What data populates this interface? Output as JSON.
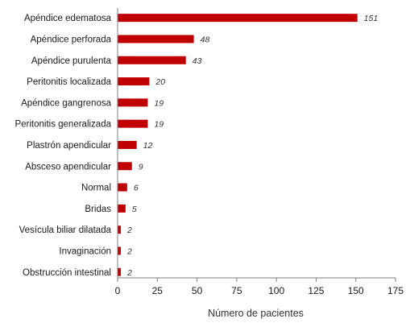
{
  "chart_data": {
    "type": "bar",
    "orientation": "horizontal",
    "categories": [
      "Apéndice edematosa",
      "Apéndice perforada",
      "Apéndice purulenta",
      "Peritonitis localizada",
      "Apéndice gangrenosa",
      "Peritonitis generalizada",
      "Plastrón apendicular",
      "Absceso apendicular",
      "Normal",
      "Bridas",
      "Vesícula biliar dilatada",
      "Invaginación",
      "Obstrucción intestinal"
    ],
    "values": [
      151,
      48,
      43,
      20,
      19,
      19,
      12,
      9,
      6,
      5,
      2,
      2,
      2
    ],
    "value_labels": [
      "151",
      "48",
      "43",
      "20",
      "19",
      "19",
      "12",
      "9",
      "6",
      "5",
      "2",
      "2",
      "2"
    ],
    "xlabel": "Número de pacientes",
    "xlim": [
      0,
      175
    ],
    "xticks": [
      0,
      25,
      50,
      75,
      100,
      125,
      150,
      175
    ],
    "xtick_labels": [
      "0",
      "25",
      "50",
      "75",
      "100",
      "125",
      "150",
      "175"
    ],
    "grid": false,
    "legend": "none",
    "bar_color": "#c00000"
  }
}
